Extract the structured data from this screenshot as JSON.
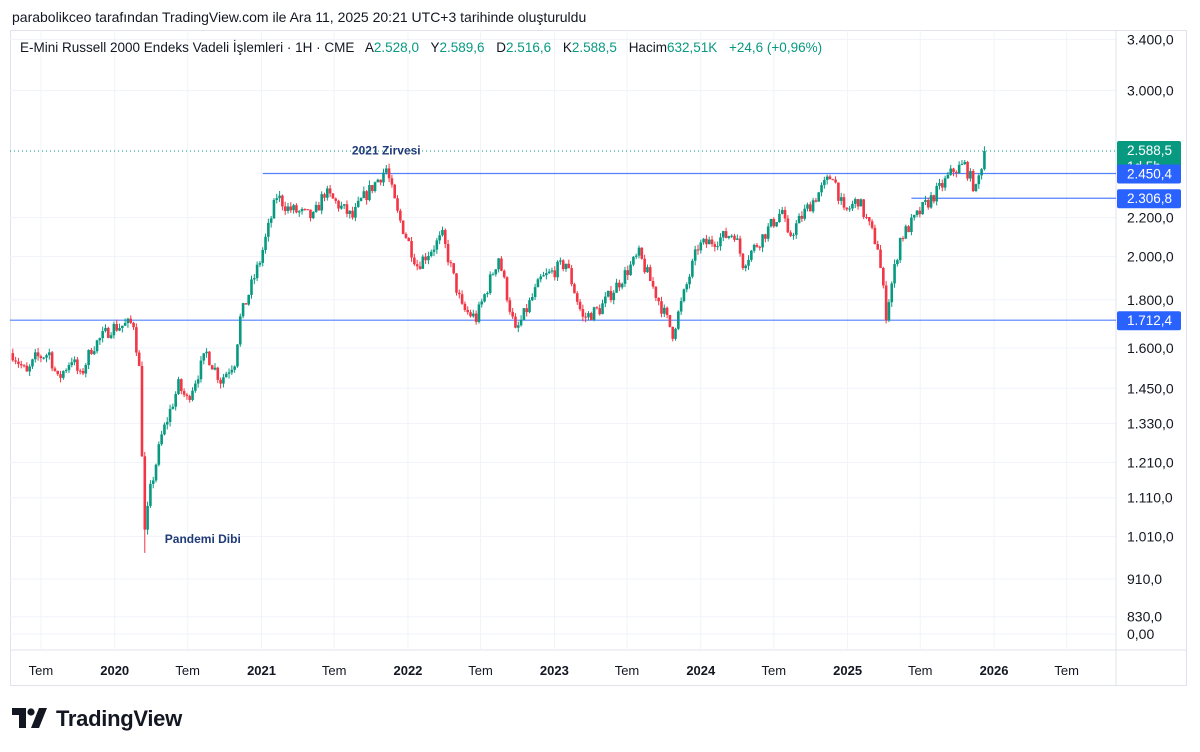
{
  "credit": "parabolikceo tarafından TradingView.com ile Ara 11, 2025 20:21 UTC+3 tarihinde oluşturuldu",
  "legend": {
    "symbol": "E-Mini Russell 2000 Endeks Vadeli İşlemleri · 1H · CME",
    "open_label": "A",
    "open": "2.528,0",
    "high_label": "Y",
    "high": "2.589,6",
    "low_label": "D",
    "low": "2.516,6",
    "close_label": "K",
    "close": "2.588,5",
    "volume_label": "Hacim",
    "volume": "632,51K",
    "change": "+24,6 (+0,96%)"
  },
  "brand": "TradingView",
  "colors": {
    "up": "#089981",
    "down": "#f23645",
    "levels": "#2962ff",
    "annotation": "#1e3a78",
    "last_price": "#089981"
  },
  "chart_data": {
    "type": "candlestick",
    "interval": "1 week",
    "y_scale": "log",
    "y_ticks": [
      "3.400,0",
      "3.000,0",
      "2.200,0",
      "2.000,0",
      "1.800,0",
      "1.600,0",
      "1.450,0",
      "1.330,0",
      "1.210,0",
      "1.110,0",
      "1.010,0",
      "910,0",
      "830,0",
      "0,00"
    ],
    "x_ticks": [
      {
        "label": "Tem",
        "year": false,
        "date": "2019-07-01"
      },
      {
        "label": "2020",
        "year": true,
        "date": "2020-01-01"
      },
      {
        "label": "Tem",
        "year": false,
        "date": "2020-07-01"
      },
      {
        "label": "2021",
        "year": true,
        "date": "2021-01-01"
      },
      {
        "label": "Tem",
        "year": false,
        "date": "2021-07-01"
      },
      {
        "label": "2022",
        "year": true,
        "date": "2022-01-01"
      },
      {
        "label": "Tem",
        "year": false,
        "date": "2022-07-01"
      },
      {
        "label": "2023",
        "year": true,
        "date": "2023-01-01"
      },
      {
        "label": "Tem",
        "year": false,
        "date": "2023-07-01"
      },
      {
        "label": "2024",
        "year": true,
        "date": "2024-01-01"
      },
      {
        "label": "Tem",
        "year": false,
        "date": "2024-07-01"
      },
      {
        "label": "2025",
        "year": true,
        "date": "2025-01-01"
      },
      {
        "label": "Tem",
        "year": false,
        "date": "2025-07-01"
      },
      {
        "label": "2026",
        "year": true,
        "date": "2026-01-01"
      },
      {
        "label": "Tem",
        "year": false,
        "date": "2026-07-01"
      }
    ],
    "price_path": [
      [
        "2019-04-22",
        1580
      ],
      [
        "2019-05-27",
        1500
      ],
      [
        "2019-06-17",
        1560
      ],
      [
        "2019-07-22",
        1580
      ],
      [
        "2019-08-12",
        1480
      ],
      [
        "2019-09-16",
        1560
      ],
      [
        "2019-10-07",
        1490
      ],
      [
        "2019-11-04",
        1600
      ],
      [
        "2019-12-23",
        1680
      ],
      [
        "2020-01-20",
        1690
      ],
      [
        "2020-02-17",
        1700
      ],
      [
        "2020-03-02",
        1520
      ],
      [
        "2020-03-16",
        1020
      ],
      [
        "2020-03-30",
        1130
      ],
      [
        "2020-04-27",
        1290
      ],
      [
        "2020-06-08",
        1460
      ],
      [
        "2020-06-29",
        1410
      ],
      [
        "2020-08-17",
        1580
      ],
      [
        "2020-09-21",
        1480
      ],
      [
        "2020-10-26",
        1550
      ],
      [
        "2020-11-09",
        1720
      ],
      [
        "2020-12-28",
        1980
      ],
      [
        "2021-02-08",
        2320
      ],
      [
        "2021-03-08",
        2250
      ],
      [
        "2021-05-10",
        2200
      ],
      [
        "2021-06-07",
        2340
      ],
      [
        "2021-08-16",
        2200
      ],
      [
        "2021-09-06",
        2290
      ],
      [
        "2021-11-08",
        2480
      ],
      [
        "2021-12-06",
        2220
      ],
      [
        "2022-01-24",
        1960
      ],
      [
        "2022-03-28",
        2100
      ],
      [
        "2022-05-16",
        1760
      ],
      [
        "2022-06-20",
        1720
      ],
      [
        "2022-08-15",
        2000
      ],
      [
        "2022-09-26",
        1660
      ],
      [
        "2022-11-28",
        1890
      ],
      [
        "2023-01-30",
        1970
      ],
      [
        "2023-03-13",
        1720
      ],
      [
        "2023-04-24",
        1760
      ],
      [
        "2023-07-31",
        2010
      ],
      [
        "2023-10-23",
        1660
      ],
      [
        "2023-12-25",
        2050
      ],
      [
        "2024-03-25",
        2120
      ],
      [
        "2024-04-15",
        1970
      ],
      [
        "2024-07-22",
        2240
      ],
      [
        "2024-08-05",
        2090
      ],
      [
        "2024-09-16",
        2230
      ],
      [
        "2024-11-25",
        2450
      ],
      [
        "2024-12-23",
        2220
      ],
      [
        "2025-01-27",
        2300
      ],
      [
        "2025-03-17",
        2050
      ],
      [
        "2025-04-07",
        1740
      ],
      [
        "2025-05-12",
        2090
      ],
      [
        "2025-07-07",
        2250
      ],
      [
        "2025-08-18",
        2360
      ],
      [
        "2025-09-22",
        2470
      ],
      [
        "2025-10-20",
        2500
      ],
      [
        "2025-11-17",
        2350
      ],
      [
        "2025-12-08",
        2588.5
      ]
    ],
    "lows": [
      {
        "date": "2020-03-16",
        "value": 970
      },
      {
        "date": "2025-04-07",
        "value": 1712.4
      }
    ],
    "levels": [
      {
        "value": 1712.4,
        "label": "1.712,4",
        "from": "start"
      },
      {
        "value": 2450.4,
        "label": "2.450,4",
        "from": "2021-01-04"
      },
      {
        "value": 2306.8,
        "label": "2.306,8",
        "from": "2025-06-09"
      }
    ],
    "last_price": {
      "value": 2588.5,
      "label": "2.588,5",
      "countdown": "1d 5h"
    },
    "annotations": [
      {
        "text": "2021 Zirvesi",
        "date": "2021-11-08",
        "value": 2480
      },
      {
        "text": "Pandemi Dibi",
        "date": "2020-03-16",
        "value": 970
      }
    ]
  }
}
